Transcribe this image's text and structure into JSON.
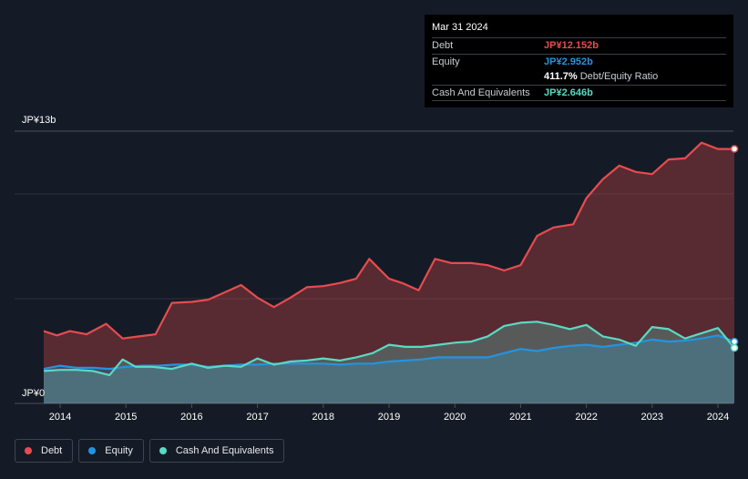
{
  "tooltip": {
    "date": "Mar 31 2024",
    "debt_label": "Debt",
    "debt_value": "JP¥12.152b",
    "equity_label": "Equity",
    "equity_value": "JP¥2.952b",
    "ratio_value": "411.7%",
    "ratio_label": "Debt/Equity Ratio",
    "cash_label": "Cash And Equivalents",
    "cash_value": "JP¥2.646b"
  },
  "legend": {
    "debt": "Debt",
    "equity": "Equity",
    "cash": "Cash And Equivalents"
  },
  "colors": {
    "debt": "#e64c4f",
    "equity": "#2394df",
    "cash": "#5bd9c3",
    "background": "#151b26"
  },
  "chart_data": {
    "type": "area",
    "y_top_label": "JP¥13b",
    "y_bottom_label": "JP¥0",
    "ylim": [
      0,
      13
    ],
    "xlim": [
      2013.7,
      2024.25
    ],
    "x_ticks": [
      "2014",
      "2015",
      "2016",
      "2017",
      "2018",
      "2019",
      "2020",
      "2021",
      "2022",
      "2023",
      "2024"
    ],
    "series": [
      {
        "name": "Debt",
        "points": [
          [
            2013.75,
            3.45
          ],
          [
            2013.95,
            3.25
          ],
          [
            2014.15,
            3.45
          ],
          [
            2014.4,
            3.3
          ],
          [
            2014.7,
            3.8
          ],
          [
            2014.95,
            3.1
          ],
          [
            2015.2,
            3.2
          ],
          [
            2015.45,
            3.3
          ],
          [
            2015.7,
            4.8
          ],
          [
            2016.0,
            4.85
          ],
          [
            2016.25,
            4.95
          ],
          [
            2016.5,
            5.3
          ],
          [
            2016.75,
            5.65
          ],
          [
            2017.0,
            5.05
          ],
          [
            2017.25,
            4.6
          ],
          [
            2017.5,
            5.05
          ],
          [
            2017.75,
            5.55
          ],
          [
            2018.0,
            5.6
          ],
          [
            2018.25,
            5.75
          ],
          [
            2018.5,
            5.95
          ],
          [
            2018.7,
            6.9
          ],
          [
            2019.0,
            5.95
          ],
          [
            2019.2,
            5.75
          ],
          [
            2019.45,
            5.4
          ],
          [
            2019.7,
            6.9
          ],
          [
            2019.95,
            6.7
          ],
          [
            2020.25,
            6.7
          ],
          [
            2020.5,
            6.6
          ],
          [
            2020.75,
            6.35
          ],
          [
            2021.0,
            6.6
          ],
          [
            2021.25,
            8.0
          ],
          [
            2021.5,
            8.4
          ],
          [
            2021.8,
            8.55
          ],
          [
            2022.0,
            9.8
          ],
          [
            2022.25,
            10.7
          ],
          [
            2022.5,
            11.35
          ],
          [
            2022.75,
            11.05
          ],
          [
            2023.0,
            10.95
          ],
          [
            2023.25,
            11.65
          ],
          [
            2023.5,
            11.7
          ],
          [
            2023.75,
            12.45
          ],
          [
            2024.0,
            12.15
          ],
          [
            2024.25,
            12.15
          ]
        ]
      },
      {
        "name": "Equity",
        "points": [
          [
            2013.75,
            1.65
          ],
          [
            2014.0,
            1.8
          ],
          [
            2014.25,
            1.7
          ],
          [
            2014.5,
            1.7
          ],
          [
            2014.75,
            1.65
          ],
          [
            2015.0,
            1.75
          ],
          [
            2015.25,
            1.8
          ],
          [
            2015.5,
            1.8
          ],
          [
            2015.75,
            1.85
          ],
          [
            2016.0,
            1.85
          ],
          [
            2016.25,
            1.75
          ],
          [
            2016.5,
            1.8
          ],
          [
            2016.75,
            1.85
          ],
          [
            2017.0,
            1.85
          ],
          [
            2017.25,
            1.9
          ],
          [
            2017.5,
            1.9
          ],
          [
            2017.75,
            1.9
          ],
          [
            2018.0,
            1.9
          ],
          [
            2018.25,
            1.85
          ],
          [
            2018.5,
            1.9
          ],
          [
            2018.75,
            1.9
          ],
          [
            2019.0,
            2.0
          ],
          [
            2019.25,
            2.05
          ],
          [
            2019.5,
            2.1
          ],
          [
            2019.75,
            2.2
          ],
          [
            2020.0,
            2.2
          ],
          [
            2020.25,
            2.2
          ],
          [
            2020.5,
            2.2
          ],
          [
            2020.75,
            2.4
          ],
          [
            2021.0,
            2.6
          ],
          [
            2021.25,
            2.5
          ],
          [
            2021.5,
            2.65
          ],
          [
            2021.75,
            2.75
          ],
          [
            2022.0,
            2.8
          ],
          [
            2022.25,
            2.7
          ],
          [
            2022.5,
            2.8
          ],
          [
            2022.75,
            2.9
          ],
          [
            2023.0,
            3.05
          ],
          [
            2023.25,
            2.95
          ],
          [
            2023.5,
            3.0
          ],
          [
            2023.75,
            3.1
          ],
          [
            2024.0,
            3.25
          ],
          [
            2024.25,
            2.95
          ]
        ]
      },
      {
        "name": "Cash And Equivalents",
        "points": [
          [
            2013.75,
            1.55
          ],
          [
            2014.0,
            1.6
          ],
          [
            2014.25,
            1.6
          ],
          [
            2014.5,
            1.55
          ],
          [
            2014.75,
            1.35
          ],
          [
            2014.95,
            2.1
          ],
          [
            2015.15,
            1.75
          ],
          [
            2015.4,
            1.75
          ],
          [
            2015.7,
            1.65
          ],
          [
            2016.0,
            1.9
          ],
          [
            2016.25,
            1.7
          ],
          [
            2016.5,
            1.8
          ],
          [
            2016.75,
            1.75
          ],
          [
            2017.0,
            2.15
          ],
          [
            2017.25,
            1.85
          ],
          [
            2017.5,
            2.0
          ],
          [
            2017.75,
            2.05
          ],
          [
            2018.0,
            2.15
          ],
          [
            2018.25,
            2.05
          ],
          [
            2018.5,
            2.2
          ],
          [
            2018.75,
            2.4
          ],
          [
            2019.0,
            2.8
          ],
          [
            2019.25,
            2.7
          ],
          [
            2019.5,
            2.7
          ],
          [
            2019.75,
            2.8
          ],
          [
            2020.0,
            2.9
          ],
          [
            2020.25,
            2.95
          ],
          [
            2020.5,
            3.2
          ],
          [
            2020.75,
            3.7
          ],
          [
            2021.0,
            3.85
          ],
          [
            2021.25,
            3.9
          ],
          [
            2021.5,
            3.75
          ],
          [
            2021.75,
            3.55
          ],
          [
            2022.0,
            3.75
          ],
          [
            2022.25,
            3.2
          ],
          [
            2022.5,
            3.05
          ],
          [
            2022.75,
            2.75
          ],
          [
            2023.0,
            3.65
          ],
          [
            2023.25,
            3.55
          ],
          [
            2023.5,
            3.1
          ],
          [
            2023.75,
            3.35
          ],
          [
            2024.0,
            3.6
          ],
          [
            2024.25,
            2.65
          ]
        ]
      }
    ]
  }
}
